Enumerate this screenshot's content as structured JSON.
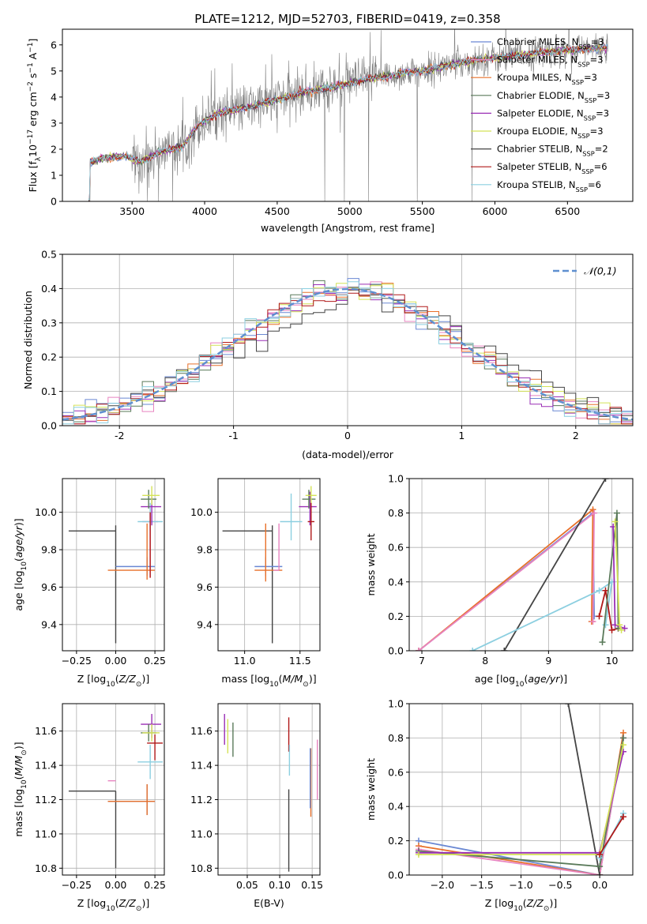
{
  "title": "PLATE=1212, MJD=52703, FIBERID=0419, z=0.358",
  "colors": {
    "Chabrier MILES": "#6a88d3",
    "Salpeter MILES": "#e884c0",
    "Kroupa MILES": "#e8702a",
    "Chabrier ELODIE": "#5a7a5a",
    "Salpeter ELODIE": "#9a2fb5",
    "Kroupa ELODIE": "#d4e257",
    "Chabrier STELIB": "#444444",
    "Salpeter STELIB": "#b01818",
    "Kroupa STELIB": "#8ccfe0",
    "data": "#808080",
    "normal": "#5f8fd0"
  },
  "spectrum": {
    "xlabel": "wavelength [Angstrom, rest frame]",
    "ylabel": "Flux [fλ 10^-17 erg cm^-2 s^-1 A^-1]",
    "xlim": [
      3020,
      6950
    ],
    "ylim": [
      0,
      6.6
    ],
    "xticks": [
      3500,
      4000,
      4500,
      5000,
      5500,
      6000,
      6500
    ],
    "yticks": [
      0,
      1,
      2,
      3,
      4,
      5,
      6
    ],
    "legend": [
      {
        "label": "Chabrier MILES, N_SSP=3",
        "model": "Chabrier MILES"
      },
      {
        "label": "Salpeter MILES, N_SSP=3",
        "model": "Salpeter MILES"
      },
      {
        "label": "Kroupa MILES, N_SSP=3",
        "model": "Kroupa MILES"
      },
      {
        "label": "Chabrier ELODIE, N_SSP=3",
        "model": "Chabrier ELODIE"
      },
      {
        "label": "Salpeter ELODIE, N_SSP=3",
        "model": "Salpeter ELODIE"
      },
      {
        "label": "Kroupa ELODIE, N_SSP=3",
        "model": "Kroupa ELODIE"
      },
      {
        "label": "Chabrier STELIB, N_SSP=2",
        "model": "Chabrier STELIB"
      },
      {
        "label": "Salpeter STELIB, N_SSP=6",
        "model": "Salpeter STELIB"
      },
      {
        "label": "Kroupa STELIB, N_SSP=6",
        "model": "Kroupa STELIB"
      }
    ],
    "continuum_knots": [
      [
        3200,
        0
      ],
      [
        3210,
        1.5
      ],
      [
        3300,
        1.65
      ],
      [
        3450,
        1.75
      ],
      [
        3550,
        1.5
      ],
      [
        3700,
        1.9
      ],
      [
        3850,
        2.1
      ],
      [
        3950,
        2.9
      ],
      [
        4100,
        3.4
      ],
      [
        4300,
        3.6
      ],
      [
        4500,
        3.9
      ],
      [
        4700,
        4.2
      ],
      [
        4900,
        4.4
      ],
      [
        5100,
        4.65
      ],
      [
        5300,
        4.85
      ],
      [
        5500,
        5.0
      ],
      [
        5700,
        5.25
      ],
      [
        5900,
        5.45
      ],
      [
        6100,
        5.55
      ],
      [
        6300,
        5.7
      ],
      [
        6500,
        5.8
      ],
      [
        6700,
        5.85
      ],
      [
        6780,
        5.9
      ]
    ]
  },
  "residual": {
    "xlabel": "(data-model)/error",
    "ylabel": "Normed distribution",
    "xlim": [
      -2.5,
      2.5
    ],
    "ylim": [
      0,
      0.5
    ],
    "xticks": [
      -2,
      -1,
      0,
      1,
      2
    ],
    "yticks": [
      0.0,
      0.1,
      0.2,
      0.3,
      0.4,
      0.5
    ],
    "legend_label": "𝒩(0,1)",
    "bin_width": 0.1
  },
  "age_Z": {
    "xlabel": "Z [log10(Z/Z⊙)]",
    "ylabel": "age [log10(age/yr)]",
    "xlim": [
      -0.34,
      0.31
    ],
    "ylim": [
      9.26,
      10.18
    ],
    "xticks": [
      -0.25,
      0.0,
      0.25
    ],
    "yticks": [
      9.4,
      9.6,
      9.8,
      10.0
    ],
    "points": [
      {
        "model": "Chabrier STELIB",
        "x": 0.0,
        "y": 9.9,
        "xerr": [
          0.3,
          0.0
        ],
        "yerr": [
          0.6,
          0.03
        ]
      },
      {
        "model": "Chabrier MILES",
        "x": 0.2,
        "y": 9.71,
        "xerr": [
          0.2,
          0.05
        ],
        "yerr": [
          0.05,
          0.05
        ]
      },
      {
        "model": "Kroupa MILES",
        "x": 0.2,
        "y": 9.69,
        "xerr": [
          0.25,
          0.05
        ],
        "yerr": [
          0.05,
          0.25
        ]
      },
      {
        "model": "Salpeter MILES",
        "x": 0.22,
        "y": 9.95,
        "xerr": [
          0.05,
          0.05
        ],
        "yerr": [
          0.3,
          0.05
        ]
      },
      {
        "model": "Kroupa STELIB",
        "x": 0.22,
        "y": 9.95,
        "xerr": [
          0.08,
          0.08
        ],
        "yerr": [
          0.05,
          0.1
        ]
      },
      {
        "model": "Salpeter ELODIE",
        "x": 0.23,
        "y": 10.03,
        "xerr": [
          0.07,
          0.06
        ],
        "yerr": [
          0.1,
          0.05
        ]
      },
      {
        "model": "Chabrier ELODIE",
        "x": 0.21,
        "y": 10.07,
        "xerr": [
          0.05,
          0.05
        ],
        "yerr": [
          0.05,
          0.05
        ]
      },
      {
        "model": "Kroupa ELODIE",
        "x": 0.23,
        "y": 10.09,
        "xerr": [
          0.06,
          0.05
        ],
        "yerr": [
          0.05,
          0.05
        ]
      },
      {
        "model": "Salpeter STELIB",
        "x": 0.22,
        "y": 9.95,
        "xerr": [
          0.0,
          0.0
        ],
        "yerr": [
          0.3,
          0.05
        ]
      }
    ]
  },
  "age_mass": {
    "xlabel": "mass [log10(M/M⊙)]",
    "xlim": [
      10.76,
      11.68
    ],
    "ylim": [
      9.26,
      10.18
    ],
    "xticks": [
      11.0,
      11.5
    ],
    "yticks": [
      9.4,
      9.6,
      9.8,
      10.0
    ],
    "points": [
      {
        "model": "Chabrier STELIB",
        "x": 11.25,
        "y": 9.9,
        "xerr": [
          0.45,
          0.0
        ],
        "yerr": [
          0.6,
          0.03
        ]
      },
      {
        "model": "Chabrier MILES",
        "x": 11.19,
        "y": 9.71,
        "xerr": [
          0.1,
          0.15
        ],
        "yerr": [
          0.05,
          0.05
        ]
      },
      {
        "model": "Kroupa MILES",
        "x": 11.19,
        "y": 9.69,
        "xerr": [
          0.1,
          0.15
        ],
        "yerr": [
          0.06,
          0.25
        ]
      },
      {
        "model": "Salpeter MILES",
        "x": 11.31,
        "y": 9.69,
        "xerr": [
          0.05,
          0.0
        ],
        "yerr": [
          0.0,
          0.25
        ]
      },
      {
        "model": "Kroupa STELIB",
        "x": 11.42,
        "y": 9.95,
        "xerr": [
          0.1,
          0.1
        ],
        "yerr": [
          0.1,
          0.15
        ]
      },
      {
        "model": "Salpeter ELODIE",
        "x": 11.59,
        "y": 10.03,
        "xerr": [
          0.1,
          0.06
        ],
        "yerr": [
          0.1,
          0.08
        ]
      },
      {
        "model": "Chabrier ELODIE",
        "x": 11.58,
        "y": 10.07,
        "xerr": [
          0.06,
          0.06
        ],
        "yerr": [
          0.05,
          0.05
        ]
      },
      {
        "model": "Kroupa ELODIE",
        "x": 11.6,
        "y": 10.09,
        "xerr": [
          0.05,
          0.05
        ],
        "yerr": [
          0.05,
          0.05
        ]
      },
      {
        "model": "Salpeter STELIB",
        "x": 11.6,
        "y": 9.95,
        "xerr": [
          0.03,
          0.03
        ],
        "yerr": [
          0.1,
          0.1
        ]
      }
    ]
  },
  "weight_age": {
    "xlabel": "age [log10(age/yr)]",
    "ylabel": "mass weight",
    "xlim": [
      6.8,
      10.33
    ],
    "ylim": [
      0,
      1.0
    ],
    "xticks": [
      7,
      8,
      9,
      10
    ],
    "yticks": [
      0.0,
      0.2,
      0.4,
      0.6,
      0.8,
      1.0
    ],
    "series": [
      {
        "model": "Chabrier MILES",
        "x": [
          6.95,
          9.7,
          9.72
        ],
        "y": [
          0.0,
          0.8,
          0.2
        ]
      },
      {
        "model": "Kroupa MILES",
        "x": [
          6.95,
          9.7,
          9.68
        ],
        "y": [
          0.0,
          0.82,
          0.17
        ]
      },
      {
        "model": "Salpeter MILES",
        "x": [
          6.95,
          9.72,
          9.7
        ],
        "y": [
          0.0,
          0.8,
          0.17
        ]
      },
      {
        "model": "Chabrier STELIB",
        "x": [
          8.3,
          9.9
        ],
        "y": [
          0.0,
          1.0
        ]
      },
      {
        "model": "Kroupa STELIB",
        "x": [
          7.8,
          9.8,
          10.0,
          9.9
        ],
        "y": [
          0.0,
          0.35,
          0.4,
          0.15
        ]
      },
      {
        "model": "Salpeter STELIB",
        "x": [
          9.8,
          9.9,
          10.0,
          10.1
        ],
        "y": [
          0.2,
          0.35,
          0.12,
          0.13
        ]
      },
      {
        "model": "Chabrier ELODIE",
        "x": [
          9.85,
          10.08,
          10.1
        ],
        "y": [
          0.05,
          0.8,
          0.13
        ]
      },
      {
        "model": "Salpeter ELODIE",
        "x": [
          10.02,
          10.05,
          10.2
        ],
        "y": [
          0.72,
          0.15,
          0.13
        ]
      },
      {
        "model": "Kroupa ELODIE",
        "x": [
          10.05,
          10.12,
          10.15
        ],
        "y": [
          0.75,
          0.15,
          0.12
        ]
      }
    ]
  },
  "mass_Z": {
    "xlabel": "Z [log10(Z/Z⊙)]",
    "ylabel": "mass [log10(M/M⊙)]",
    "xlim": [
      -0.34,
      0.31
    ],
    "ylim": [
      10.76,
      11.76
    ],
    "xticks": [
      -0.25,
      0.0,
      0.25
    ],
    "yticks": [
      10.8,
      11.0,
      11.2,
      11.4,
      11.6
    ],
    "points": [
      {
        "model": "Chabrier STELIB",
        "x": 0.0,
        "y": 11.25,
        "xerr": [
          0.3,
          0.0
        ],
        "yerr": [
          0.45,
          0.0
        ]
      },
      {
        "model": "Chabrier MILES",
        "x": 0.2,
        "y": 11.19,
        "xerr": [
          0.25,
          0.05
        ],
        "yerr": [
          0.08,
          0.1
        ]
      },
      {
        "model": "Kroupa MILES",
        "x": 0.2,
        "y": 11.19,
        "xerr": [
          0.25,
          0.05
        ],
        "yerr": [
          0.08,
          0.1
        ]
      },
      {
        "model": "Salpeter MILES",
        "x": 0.0,
        "y": 11.31,
        "xerr": [
          0.05,
          0.0
        ],
        "yerr": [
          0.0,
          0.0
        ]
      },
      {
        "model": "Kroupa STELIB",
        "x": 0.22,
        "y": 11.42,
        "xerr": [
          0.08,
          0.08
        ],
        "yerr": [
          0.1,
          0.1
        ]
      },
      {
        "model": "Salpeter ELODIE",
        "x": 0.23,
        "y": 11.64,
        "xerr": [
          0.07,
          0.06
        ],
        "yerr": [
          0.08,
          0.06
        ]
      },
      {
        "model": "Chabrier ELODIE",
        "x": 0.21,
        "y": 11.59,
        "xerr": [
          0.05,
          0.05
        ],
        "yerr": [
          0.05,
          0.05
        ]
      },
      {
        "model": "Kroupa ELODIE",
        "x": 0.23,
        "y": 11.59,
        "xerr": [
          0.06,
          0.05
        ],
        "yerr": [
          0.05,
          0.05
        ]
      },
      {
        "model": "Salpeter STELIB",
        "x": 0.25,
        "y": 11.53,
        "xerr": [
          0.05,
          0.05
        ],
        "yerr": [
          0.1,
          0.05
        ]
      }
    ]
  },
  "mass_ebv": {
    "xlabel": "E(B-V)",
    "xlim": [
      0.005,
      0.162
    ],
    "ylim": [
      10.76,
      11.76
    ],
    "xticks": [
      0.05,
      0.1,
      0.15
    ],
    "yticks": [
      10.8,
      11.0,
      11.2,
      11.4,
      11.6
    ],
    "points": [
      {
        "model": "Salpeter ELODIE",
        "x": 0.015,
        "y": 11.6,
        "yerr": [
          0.08,
          0.1
        ]
      },
      {
        "model": "Kroupa ELODIE",
        "x": 0.02,
        "y": 11.57,
        "yerr": [
          0.1,
          0.1
        ]
      },
      {
        "model": "Chabrier ELODIE",
        "x": 0.028,
        "y": 11.55,
        "yerr": [
          0.1,
          0.1
        ]
      },
      {
        "model": "Chabrier STELIB",
        "x": 0.114,
        "y": 11.0,
        "yerr": [
          0.22,
          0.26
        ]
      },
      {
        "model": "Salpeter STELIB",
        "x": 0.114,
        "y": 11.58,
        "yerr": [
          0.1,
          0.1
        ]
      },
      {
        "model": "Kroupa STELIB",
        "x": 0.115,
        "y": 11.42,
        "yerr": [
          0.08,
          0.1
        ]
      },
      {
        "model": "Kroupa MILES",
        "x": 0.148,
        "y": 11.3,
        "yerr": [
          0.2,
          0.2
        ]
      },
      {
        "model": "Salpeter MILES",
        "x": 0.158,
        "y": 11.35,
        "yerr": [
          0.15,
          0.2
        ]
      },
      {
        "model": "Chabrier MILES",
        "x": 0.147,
        "y": 11.3,
        "yerr": [
          0.15,
          0.2
        ]
      }
    ]
  },
  "weight_Z": {
    "xlabel": "Z [log10(Z/Z⊙)]",
    "ylabel": "mass weight",
    "xlim": [
      -2.42,
      0.42
    ],
    "ylim": [
      0,
      1.0
    ],
    "xticks": [
      -2.0,
      -1.5,
      -1.0,
      -0.5,
      0.0
    ],
    "yticks": [
      0.0,
      0.2,
      0.4,
      0.6,
      0.8,
      1.0
    ],
    "series": [
      {
        "model": "Chabrier MILES",
        "x": [
          -2.3,
          0.0,
          0.3
        ],
        "y": [
          0.2,
          0.0,
          0.8
        ]
      },
      {
        "model": "Kroupa MILES",
        "x": [
          -2.3,
          0.0,
          0.3
        ],
        "y": [
          0.17,
          0.0,
          0.83
        ]
      },
      {
        "model": "Salpeter MILES",
        "x": [
          -2.3,
          0.0,
          0.3
        ],
        "y": [
          0.15,
          0.0,
          0.8
        ]
      },
      {
        "model": "Chabrier STELIB",
        "x": [
          -0.4,
          0.0
        ],
        "y": [
          1.0,
          0.0
        ]
      },
      {
        "model": "Chabrier ELODIE",
        "x": [
          -2.3,
          0.0,
          0.3
        ],
        "y": [
          0.14,
          0.05,
          0.8
        ]
      },
      {
        "model": "Salpeter ELODIE",
        "x": [
          -2.3,
          0.0,
          0.3
        ],
        "y": [
          0.13,
          0.13,
          0.72
        ]
      },
      {
        "model": "Kroupa ELODIE",
        "x": [
          -2.3,
          0.0,
          0.3
        ],
        "y": [
          0.12,
          0.12,
          0.76
        ]
      },
      {
        "model": "Kroupa STELIB",
        "x": [
          0.0,
          0.3
        ],
        "y": [
          0.1,
          0.36
        ]
      },
      {
        "model": "Salpeter STELIB",
        "x": [
          0.0,
          0.3
        ],
        "y": [
          0.12,
          0.34
        ]
      }
    ]
  },
  "chart_data": [
    {
      "type": "line",
      "title": "PLATE=1212, MJD=52703, FIBERID=0419, z=0.358",
      "xlabel": "wavelength [Angstrom, rest frame]",
      "ylabel": "Flux [fλ 10^-17 erg cm^-2 s^-1 A^-1]",
      "xlim": [
        3020,
        6950
      ],
      "ylim": [
        0,
        6.6
      ],
      "series": [
        {
          "name": "data (noisy spectrum)",
          "x": [
            3200,
            3300,
            3450,
            3550,
            3700,
            3950,
            4300,
            4700,
            5100,
            5500,
            5900,
            6300,
            6700
          ],
          "y": [
            1.5,
            1.65,
            1.75,
            1.5,
            1.9,
            2.9,
            3.6,
            4.2,
            4.65,
            5.0,
            5.45,
            5.7,
            5.85
          ]
        }
      ],
      "legend": "top-right"
    },
    {
      "type": "line",
      "xlabel": "(data-model)/error",
      "ylabel": "Normed distribution",
      "xlim": [
        -2.5,
        2.5
      ],
      "ylim": [
        0,
        0.5
      ],
      "series": [
        {
          "name": "𝒩(0,1)",
          "x": [
            -2.5,
            -2,
            -1,
            0,
            1,
            2,
            2.5
          ],
          "y": [
            0.018,
            0.054,
            0.242,
            0.399,
            0.242,
            0.054,
            0.018
          ]
        }
      ],
      "legend": "top-right",
      "grid": true
    },
    {
      "type": "scatter",
      "xlabel": "age [log10(age/yr)]",
      "ylabel": "mass weight",
      "xlim": [
        6.8,
        10.33
      ],
      "ylim": [
        0,
        1.0
      ],
      "grid": true
    },
    {
      "type": "scatter",
      "xlabel": "Z [log10(Z/Z⊙)]",
      "ylabel": "mass weight",
      "xlim": [
        -2.42,
        0.42
      ],
      "ylim": [
        0,
        1.0
      ],
      "grid": true
    }
  ]
}
